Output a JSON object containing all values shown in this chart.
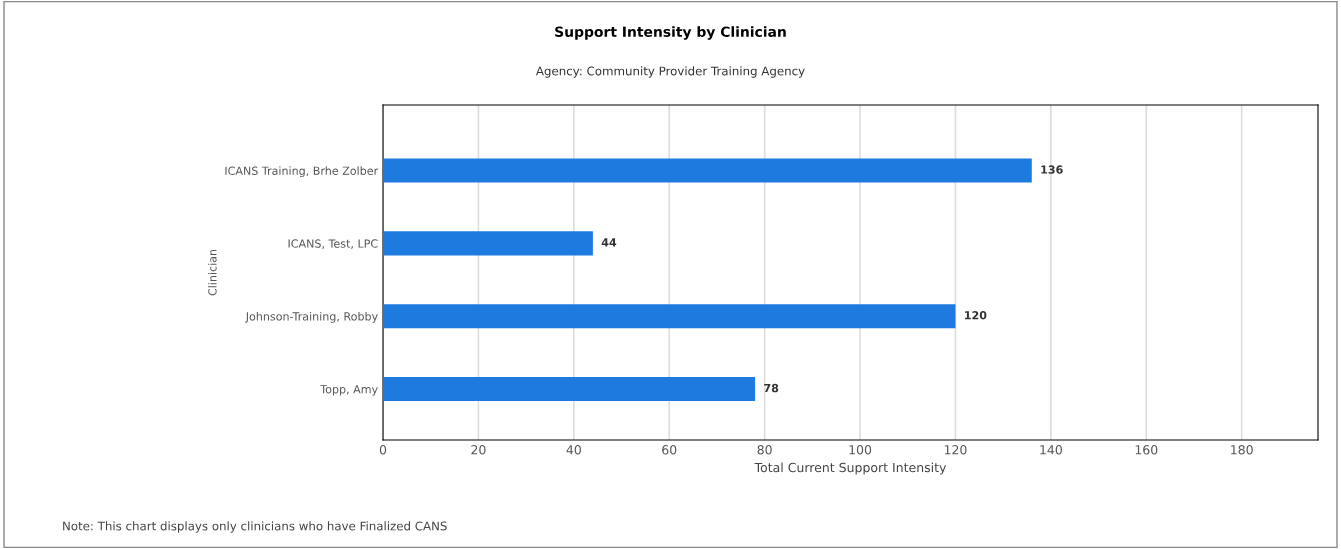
{
  "chart_data": {
    "type": "bar",
    "orientation": "horizontal",
    "title": "Support Intensity by Clinician",
    "subtitle": "Agency: Community Provider Training Agency",
    "xlabel": "Total Current Support Intensity",
    "ylabel": "Clinician",
    "categories": [
      "ICANS Training, Brhe Zolber",
      "ICANS, Test, LPC",
      "Johnson-Training, Robby",
      "Topp, Amy"
    ],
    "values": [
      136,
      44,
      120,
      78
    ],
    "color": "#1f7ae0",
    "data_labels": true,
    "xlim": [
      0,
      196
    ],
    "xticks": [
      0,
      20,
      40,
      60,
      80,
      100,
      120,
      140,
      160,
      180
    ],
    "grid": "x",
    "annotations": [
      "Note: This chart displays only clinicians who have Finalized CANS"
    ]
  }
}
